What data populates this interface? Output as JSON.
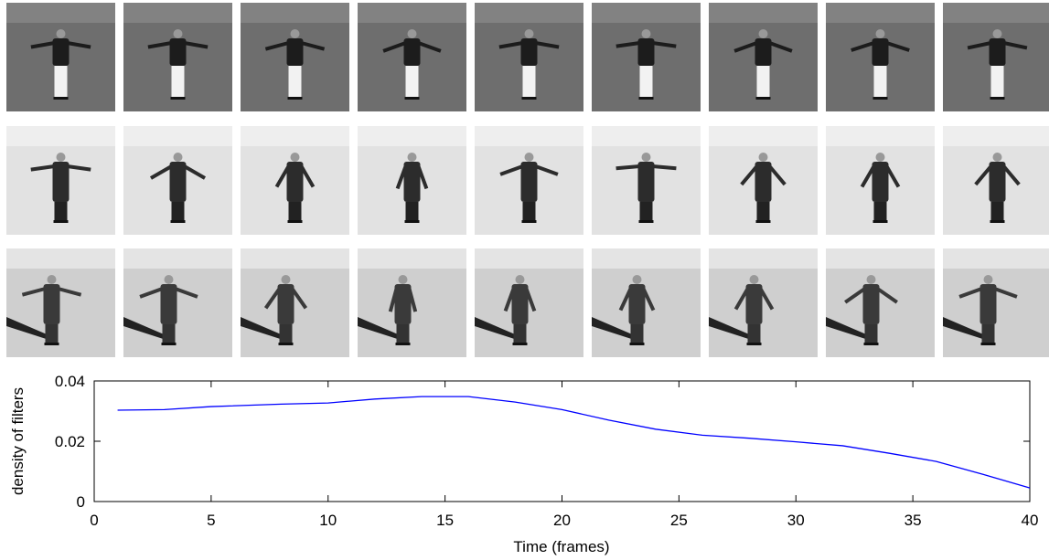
{
  "chart_data": {
    "type": "line",
    "xlabel": "Time (frames)",
    "ylabel": "density of filters",
    "x": [
      1,
      3,
      5,
      8,
      10,
      12,
      14,
      16,
      18,
      20,
      22,
      24,
      26,
      28,
      30,
      32,
      34,
      36,
      38,
      40
    ],
    "values": [
      0.0303,
      0.0305,
      0.0315,
      0.0323,
      0.0327,
      0.034,
      0.0348,
      0.0348,
      0.033,
      0.0305,
      0.027,
      0.024,
      0.022,
      0.021,
      0.0198,
      0.0185,
      0.016,
      0.0133,
      0.009,
      0.0045
    ],
    "color": "#0000ff",
    "xlim": [
      0,
      40
    ],
    "xticks": [
      0,
      5,
      10,
      15,
      20,
      25,
      30,
      35,
      40
    ],
    "ylim": [
      0,
      0.04
    ],
    "yticks": [
      0,
      0.02,
      0.04
    ]
  }
}
